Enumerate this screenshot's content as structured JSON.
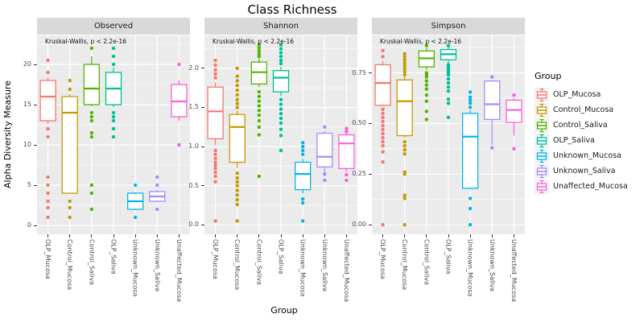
{
  "title": "Class Richness",
  "x_axis_title": "Group",
  "y_axis_title": "Alpha Diversity Measure",
  "annotation": "Kruskal-Wallis, p < 2.2e-16",
  "categories": [
    "OLP_Mucosa",
    "Control_Mucosa",
    "Control_Saliva",
    "OLP_Saliva",
    "Unknown_Mucosa",
    "Unknown_Saliva",
    "Unaffected_Mucosa"
  ],
  "legend": {
    "title": "Group",
    "items": [
      {
        "label": "OLP_Mucosa",
        "color": "#F8766D"
      },
      {
        "label": "Control_Mucosa",
        "color": "#C49A00"
      },
      {
        "label": "Control_Saliva",
        "color": "#53B400"
      },
      {
        "label": "OLP_Saliva",
        "color": "#00C094"
      },
      {
        "label": "Unknown_Mucosa",
        "color": "#00B6EB"
      },
      {
        "label": "Unknown_Saliva",
        "color": "#A58AFF"
      },
      {
        "label": "Unaffected_Mucosa",
        "color": "#FB61D7"
      }
    ]
  },
  "theme": {
    "panel_bg": "#EBEBEB",
    "strip_bg": "#D9D9D9",
    "grid": "#FFFFFF",
    "tick_text": "#4D4D4D",
    "box_fill": "#FFFFFF"
  },
  "chart_data": [
    {
      "type": "boxplot",
      "facet": "Observed",
      "ylim": [
        -1.1,
        23.6
      ],
      "ytick_values": [
        0,
        5,
        10,
        15,
        20
      ],
      "ytick_labels": [
        "0",
        "5",
        "10",
        "15",
        "20"
      ],
      "boxes": [
        {
          "q1": 13,
          "median": 16,
          "q3": 18,
          "whisker_low": 12.6,
          "whisker_high": 18.4,
          "outliers": [
            20.5,
            19,
            12,
            11,
            6,
            5,
            4,
            3,
            2.2,
            1
          ]
        },
        {
          "q1": 4,
          "median": 14,
          "q3": 16,
          "whisker_low": 3.9,
          "whisker_high": 16.3,
          "outliers": [
            18,
            16.9,
            3,
            2.2,
            1
          ]
        },
        {
          "q1": 15,
          "median": 17,
          "q3": 20,
          "whisker_low": 14.8,
          "whisker_high": 21,
          "outliers": [
            22,
            14,
            13.5,
            13,
            11.5,
            11,
            5,
            4,
            2
          ]
        },
        {
          "q1": 15,
          "median": 17,
          "q3": 19,
          "whisker_low": 14.7,
          "whisker_high": 19.6,
          "outliers": [
            22,
            21,
            20,
            14,
            13.5,
            13,
            12,
            11
          ]
        },
        {
          "q1": 2,
          "median": 3,
          "q3": 4,
          "whisker_low": 1.9,
          "whisker_high": 4.1,
          "outliers": [
            5,
            1
          ]
        },
        {
          "q1": 3,
          "median": 3.6,
          "q3": 4.2,
          "whisker_low": 2.9,
          "whisker_high": 4.4,
          "outliers": [
            6,
            5,
            2
          ]
        },
        {
          "q1": 13.5,
          "median": 15.4,
          "q3": 17.5,
          "whisker_low": 13,
          "whisker_high": 18,
          "outliers": [
            20,
            10
          ]
        }
      ]
    },
    {
      "type": "boxplot",
      "facet": "Shannon",
      "ylim": [
        -0.12,
        2.42
      ],
      "ytick_values": [
        0.0,
        0.5,
        1.0,
        1.5,
        2.0
      ],
      "ytick_labels": [
        "0.0",
        "0.5",
        "1.0",
        "1.5",
        "2.0"
      ],
      "boxes": [
        {
          "q1": 1.1,
          "median": 1.45,
          "q3": 1.76,
          "whisker_low": 1.02,
          "whisker_high": 1.82,
          "outliers": [
            2.1,
            2.04,
            1.98,
            1.93,
            1.88,
            0.95,
            0.9,
            0.85,
            0.8,
            0.76,
            0.72,
            0.67,
            0.62,
            0.55,
            0.05
          ]
        },
        {
          "q1": 0.8,
          "median": 1.25,
          "q3": 1.41,
          "whisker_low": 0.73,
          "whisker_high": 1.46,
          "outliers": [
            2.0,
            1.9,
            1.84,
            1.78,
            1.72,
            1.66,
            1.6,
            1.55,
            1.5,
            0.66,
            0.6,
            0.55,
            0.5,
            0.44,
            0.38,
            0.32,
            0.26,
            0.05
          ]
        },
        {
          "q1": 1.8,
          "median": 1.95,
          "q3": 2.08,
          "whisker_low": 1.76,
          "whisker_high": 2.12,
          "outliers": [
            2.3,
            2.26,
            2.22,
            2.18,
            2.15,
            1.7,
            1.64,
            1.58,
            1.52,
            1.46,
            1.4,
            1.33,
            1.25,
            1.15,
            0.62
          ]
        },
        {
          "q1": 1.7,
          "median": 1.88,
          "q3": 1.97,
          "whisker_low": 1.65,
          "whisker_high": 2.02,
          "outliers": [
            2.3,
            2.25,
            2.2,
            2.15,
            2.1,
            2.06,
            1.6,
            1.54,
            1.48,
            1.42,
            1.36,
            1.3,
            1.22,
            1.14,
            0.95
          ]
        },
        {
          "q1": 0.45,
          "median": 0.65,
          "q3": 0.8,
          "whisker_low": 0.4,
          "whisker_high": 0.84,
          "outliers": [
            1.05,
            1.0,
            0.95,
            0.9,
            0.33,
            0.28,
            0.05
          ]
        },
        {
          "q1": 0.74,
          "median": 0.87,
          "q3": 1.17,
          "whisker_low": 0.62,
          "whisker_high": 1.2,
          "outliers": [
            1.25,
            0.65,
            0.57
          ]
        },
        {
          "q1": 0.72,
          "median": 1.04,
          "q3": 1.15,
          "whisker_low": 0.68,
          "whisker_high": 1.18,
          "outliers": [
            1.23,
            1.19,
            0.64,
            0.57
          ]
        }
      ]
    },
    {
      "type": "boxplot",
      "facet": "Simpson",
      "ylim": [
        -0.047,
        0.935
      ],
      "ytick_values": [
        0.0,
        0.25,
        0.5,
        0.75
      ],
      "ytick_labels": [
        "0.00",
        "0.25",
        "0.50",
        "0.75"
      ],
      "boxes": [
        {
          "q1": 0.59,
          "median": 0.7,
          "q3": 0.79,
          "whisker_low": 0.585,
          "whisker_high": 0.81,
          "outliers": [
            0.86,
            0.83,
            0.57,
            0.55,
            0.53,
            0.51,
            0.49,
            0.47,
            0.45,
            0.43,
            0.41,
            0.39,
            0.36,
            0.31,
            0.0
          ]
        },
        {
          "q1": 0.44,
          "median": 0.61,
          "q3": 0.715,
          "whisker_low": 0.43,
          "whisker_high": 0.73,
          "outliers": [
            0.845,
            0.83,
            0.815,
            0.8,
            0.785,
            0.77,
            0.755,
            0.74,
            0.41,
            0.39,
            0.37,
            0.35,
            0.26,
            0.25,
            0.145,
            0.13,
            0.0
          ]
        },
        {
          "q1": 0.78,
          "median": 0.822,
          "q3": 0.858,
          "whisker_low": 0.765,
          "whisker_high": 0.875,
          "outliers": [
            0.885,
            0.75,
            0.74,
            0.73,
            0.71,
            0.69,
            0.67,
            0.64,
            0.61,
            0.56,
            0.52
          ]
        },
        {
          "q1": 0.815,
          "median": 0.842,
          "q3": 0.865,
          "whisker_low": 0.8,
          "whisker_high": 0.878,
          "outliers": [
            0.885,
            0.79,
            0.78,
            0.77,
            0.76,
            0.75,
            0.74,
            0.72,
            0.7,
            0.68,
            0.66,
            0.62,
            0.6,
            0.53
          ]
        },
        {
          "q1": 0.18,
          "median": 0.435,
          "q3": 0.55,
          "whisker_low": 0.175,
          "whisker_high": 0.565,
          "outliers": [
            0.655,
            0.63,
            0.615,
            0.6,
            0.58,
            0.13,
            0.08,
            0.0
          ]
        },
        {
          "q1": 0.52,
          "median": 0.595,
          "q3": 0.71,
          "whisker_low": 0.395,
          "whisker_high": 0.715,
          "outliers": [
            0.73,
            0.38
          ]
        },
        {
          "q1": 0.505,
          "median": 0.567,
          "q3": 0.615,
          "whisker_low": 0.44,
          "whisker_high": 0.625,
          "outliers": [
            0.64,
            0.375
          ]
        }
      ]
    }
  ]
}
